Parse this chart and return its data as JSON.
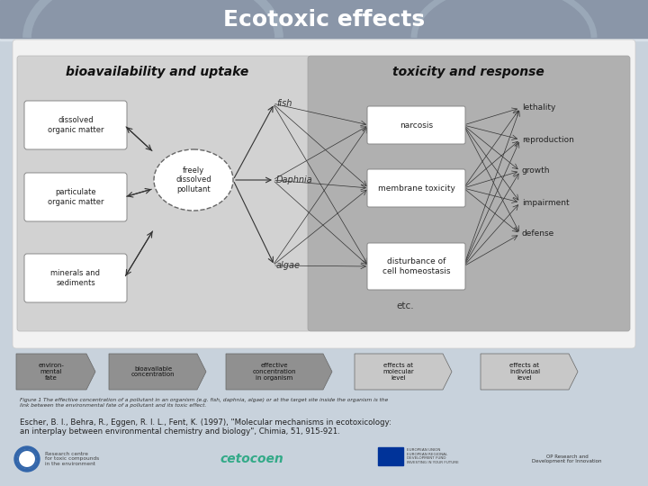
{
  "title": "Ecotoxic effects",
  "title_color": "#ffffff",
  "title_fontsize": 18,
  "slide_bg_color": "#c8d2dc",
  "title_bar_color": "#8a96a8",
  "content_bg": "#f0f0f0",
  "left_panel_bg": "#d2d2d2",
  "right_panel_bg": "#b0b0b0",
  "citation_text": "Escher, B. I., Behra, R., Eggen, R. I. L., Fent, K. (1997), \"Molecular mechanisms in ecotoxicology:\nan interplay between environmental chemistry and biology\", Chimia, 51, 915-921.",
  "figure_caption": "Figure 1 The effective concentration of a pollutant in an organism (e.g. fish, daphnia, algae) or at the target site inside the organism is the\nlink between the environmental fate of a pollutant and its toxic effect.",
  "left_title": "bioavailability and uptake",
  "right_title": "toxicity and response",
  "left_boxes": [
    "dissolved\norganic matter",
    "particulate\norganic matter",
    "minerals and\nsediments"
  ],
  "center_ellipse": "freely\ndissolved\npollutant",
  "organisms": [
    "fish",
    "Daphnia",
    "algae"
  ],
  "right_boxes": [
    "narcosis",
    "membrane toxicity",
    "disturbance of\ncell homeostasis"
  ],
  "effects": [
    "lethality",
    "reproduction",
    "growth",
    "impairment",
    "defense"
  ],
  "bottom_arrows": [
    "environ-\nmental\nfate",
    "bioavailable\nconcentration",
    "effective\nconcentration\nin organism",
    "effects at\nmolecular\nlevel",
    "effects at\nindividual\nlevel"
  ],
  "bottom_arrow_colors": [
    "#909090",
    "#909090",
    "#909090",
    "#c8c8c8",
    "#c8c8c8"
  ],
  "etc_text": "etc."
}
